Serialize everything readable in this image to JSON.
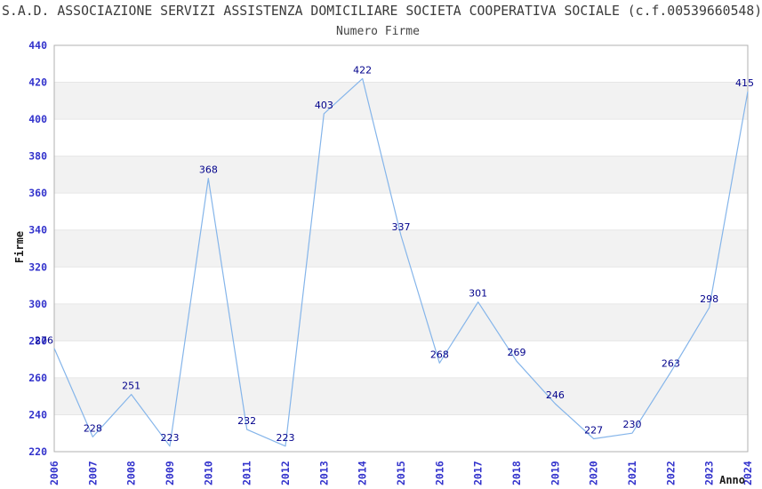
{
  "chart": {
    "title": "S.A.D. ASSOCIAZIONE SERVIZI ASSISTENZA DOMICILIARE SOCIETA COOPERATIVA SOCIALE (c.f.00539660548)",
    "subtitle": "Numero Firme"
  },
  "chart_data": {
    "type": "line",
    "title": "S.A.D. ASSOCIAZIONE SERVIZI ASSISTENZA DOMICILIARE SOCIETA COOPERATIVA SOCIALE (c.f.00539660548)",
    "subtitle": "Numero Firme",
    "xlabel": "Anno",
    "ylabel": "Firme",
    "categories": [
      "2006",
      "2007",
      "2008",
      "2009",
      "2010",
      "2011",
      "2012",
      "2013",
      "2014",
      "2015",
      "2016",
      "2017",
      "2018",
      "2019",
      "2020",
      "2021",
      "2022",
      "2023",
      "2024"
    ],
    "series": [
      {
        "name": "Numero Firme",
        "values": [
          276,
          228,
          251,
          223,
          368,
          232,
          223,
          403,
          422,
          337,
          268,
          301,
          269,
          246,
          227,
          230,
          263,
          298,
          415
        ]
      }
    ],
    "ylim": [
      220,
      440
    ],
    "ytick_step": 20,
    "yticks": [
      220,
      240,
      260,
      280,
      300,
      320,
      340,
      360,
      380,
      400,
      420,
      440
    ],
    "grid": "horizontal-alternating-bands",
    "legend_position": "none",
    "data_labels_shown": true,
    "colors": {
      "line": "#85b5ea",
      "tick_label": "#3333cc",
      "data_label": "#00008b",
      "band_gray": "#f2f2f2",
      "gridline": "#e6e6e6",
      "plot_border": "#b0b0b0",
      "axis_title": "#1a1a1a",
      "title_text": "#3a3a3a"
    }
  }
}
